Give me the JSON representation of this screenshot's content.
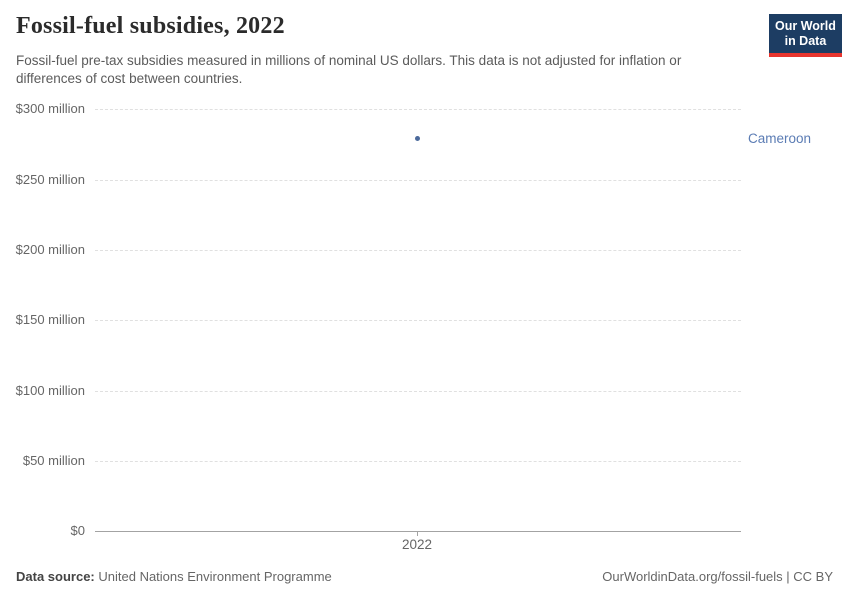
{
  "header": {
    "title": "Fossil-fuel subsidies, 2022",
    "subtitle": "Fossil-fuel pre-tax subsidies measured in millions of nominal US dollars. This data is not adjusted for inflation or differences of cost between countries.",
    "logo": {
      "line1": "Our World",
      "line2": "in Data",
      "background_color": "#1d3d63",
      "accent_color": "#e8352e"
    }
  },
  "chart_data": {
    "type": "scatter",
    "title": "Fossil-fuel subsidies, 2022",
    "x": [
      2022
    ],
    "series": [
      {
        "name": "Cameroon",
        "values": [
          279
        ],
        "unit": "million US$",
        "color": "#4c6a9c",
        "label_color": "#5b7cb4"
      }
    ],
    "xlabel": "",
    "ylabel": "",
    "ylim": [
      0,
      300
    ],
    "ytick_interval": 50,
    "ytick_labels": [
      "$0",
      "$50 million",
      "$100 million",
      "$150 million",
      "$200 million",
      "$250 million",
      "$300 million"
    ],
    "xtick_labels": [
      "2022"
    ],
    "grid": "horizontal dashed",
    "gridline_color": "#e0e0e0",
    "axis_color": "#a3a3a3",
    "tick_text_color": "#666666",
    "legend_position": "label right of plot"
  },
  "footer": {
    "source_label": "Data source:",
    "source_value": "United Nations Environment Programme",
    "credit": "OurWorldinData.org/fossil-fuels | CC BY"
  }
}
